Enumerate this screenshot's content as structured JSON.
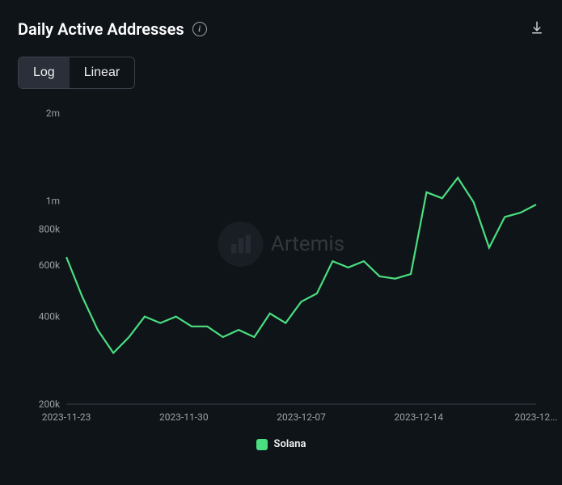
{
  "header": {
    "title": "Daily Active Addresses",
    "info_tooltip": "i",
    "download_label": "Download"
  },
  "scale_toggle": {
    "options": [
      "Log",
      "Linear"
    ],
    "active": "Log"
  },
  "watermark": {
    "text": "Artemis"
  },
  "chart": {
    "type": "line",
    "scale": "log",
    "background_color": "#0f1419",
    "axis_color": "#3a3f4a",
    "label_color": "#9aa0a6",
    "label_fontsize": 12,
    "series_color": "#4ade80",
    "line_width": 2.2,
    "ylim": [
      200000,
      2000000
    ],
    "y_ticks": [
      {
        "value": 200000,
        "label": "200k"
      },
      {
        "value": 400000,
        "label": "400k"
      },
      {
        "value": 600000,
        "label": "600k"
      },
      {
        "value": 800000,
        "label": "800k"
      },
      {
        "value": 1000000,
        "label": "1m"
      },
      {
        "value": 2000000,
        "label": "2m"
      }
    ],
    "x_ticks": [
      "2023-11-23",
      "2023-11-30",
      "2023-12-07",
      "2023-12-14",
      "2023-12..."
    ],
    "data": [
      {
        "x": "2023-11-23",
        "y": 640000
      },
      {
        "x": "2023-11-24",
        "y": 470000
      },
      {
        "x": "2023-11-25",
        "y": 360000
      },
      {
        "x": "2023-11-26",
        "y": 300000
      },
      {
        "x": "2023-11-27",
        "y": 340000
      },
      {
        "x": "2023-11-28",
        "y": 400000
      },
      {
        "x": "2023-11-29",
        "y": 380000
      },
      {
        "x": "2023-11-30",
        "y": 400000
      },
      {
        "x": "2023-12-01",
        "y": 370000
      },
      {
        "x": "2023-12-02",
        "y": 370000
      },
      {
        "x": "2023-12-03",
        "y": 340000
      },
      {
        "x": "2023-12-04",
        "y": 360000
      },
      {
        "x": "2023-12-05",
        "y": 340000
      },
      {
        "x": "2023-12-06",
        "y": 410000
      },
      {
        "x": "2023-12-07",
        "y": 380000
      },
      {
        "x": "2023-12-08",
        "y": 450000
      },
      {
        "x": "2023-12-09",
        "y": 480000
      },
      {
        "x": "2023-12-10",
        "y": 620000
      },
      {
        "x": "2023-12-11",
        "y": 590000
      },
      {
        "x": "2023-12-12",
        "y": 620000
      },
      {
        "x": "2023-12-13",
        "y": 550000
      },
      {
        "x": "2023-12-14",
        "y": 540000
      },
      {
        "x": "2023-12-15",
        "y": 560000
      },
      {
        "x": "2023-12-16",
        "y": 1070000
      },
      {
        "x": "2023-12-17",
        "y": 1020000
      },
      {
        "x": "2023-12-18",
        "y": 1200000
      },
      {
        "x": "2023-12-19",
        "y": 990000
      },
      {
        "x": "2023-12-20",
        "y": 690000
      },
      {
        "x": "2023-12-21",
        "y": 880000
      },
      {
        "x": "2023-12-22",
        "y": 910000
      },
      {
        "x": "2023-12-23",
        "y": 970000
      }
    ]
  },
  "legend": {
    "items": [
      {
        "label": "Solana",
        "color": "#4ade80"
      }
    ]
  }
}
